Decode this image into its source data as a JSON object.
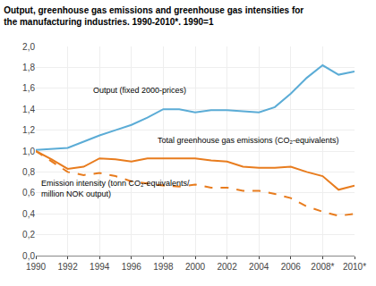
{
  "chart_data": {
    "type": "line",
    "title": "Output, greenhouse gas emissions and greenhouse gas intensities for\nthe manufacturing industries. 1990-2010*. 1990=1",
    "x": [
      1990,
      1991,
      1992,
      1993,
      1994,
      1995,
      1996,
      1997,
      1998,
      1999,
      2000,
      2001,
      2002,
      2003,
      2004,
      2005,
      2006,
      2007,
      2008,
      2009,
      2010
    ],
    "series": [
      {
        "color": "#5bacd6",
        "line_style": "solid",
        "values": [
          1.01,
          1.02,
          1.03,
          1.09,
          1.15,
          1.2,
          1.25,
          1.32,
          1.4,
          1.4,
          1.37,
          1.39,
          1.39,
          1.38,
          1.37,
          1.42,
          1.55,
          1.7,
          1.82,
          1.73,
          1.76
        ]
      },
      {
        "color": "#e87c1e",
        "line_style": "solid",
        "values": [
          1.0,
          0.92,
          0.83,
          0.85,
          0.93,
          0.92,
          0.9,
          0.93,
          0.93,
          0.93,
          0.93,
          0.91,
          0.9,
          0.85,
          0.84,
          0.84,
          0.85,
          0.8,
          0.76,
          0.63,
          0.67
        ]
      },
      {
        "color": "#e87c1e",
        "line_style": "dashed",
        "values": [
          1.0,
          0.9,
          0.8,
          0.77,
          0.79,
          0.76,
          0.71,
          0.69,
          0.67,
          0.66,
          0.68,
          0.65,
          0.65,
          0.62,
          0.62,
          0.59,
          0.55,
          0.47,
          0.42,
          0.38,
          0.4
        ]
      }
    ],
    "xlim": [
      1990,
      2010
    ],
    "xticks": [
      1990,
      1992,
      1994,
      1996,
      1998,
      2000,
      2002,
      2004,
      2006,
      {
        "value": 2008,
        "label": "2008*"
      },
      {
        "value": 2010,
        "label": "2010*"
      }
    ],
    "ylim": [
      0.0,
      2.0
    ],
    "yticks": [
      {
        "value": 0.0,
        "label": "0,0"
      },
      {
        "value": 0.2,
        "label": "0,2"
      },
      {
        "value": 0.4,
        "label": "0,4"
      },
      {
        "value": 0.6,
        "label": "0,6"
      },
      {
        "value": 0.8,
        "label": "0,8"
      },
      {
        "value": 1.0,
        "label": "1,0"
      },
      {
        "value": 1.2,
        "label": "1,2"
      },
      {
        "value": 1.4,
        "label": "1,4"
      },
      {
        "value": 1.6,
        "label": "1,6"
      },
      {
        "value": 1.8,
        "label": "1,8"
      },
      {
        "value": 2.0,
        "label": "2,0"
      }
    ],
    "grid": true,
    "annotations": [
      {
        "text": "Output (fixed 2000-prices)",
        "x": 1993.5,
        "y": 1.52
      },
      {
        "text": "Total greenhouse gas emissions (CO₂-equivalents)",
        "x": 1997.5,
        "y": 1.04
      },
      {
        "text": "Emission intensity (tonn CO₂-equivalents/\nmillion NOK output)",
        "x": 1990.2,
        "y": 0.53
      }
    ]
  }
}
